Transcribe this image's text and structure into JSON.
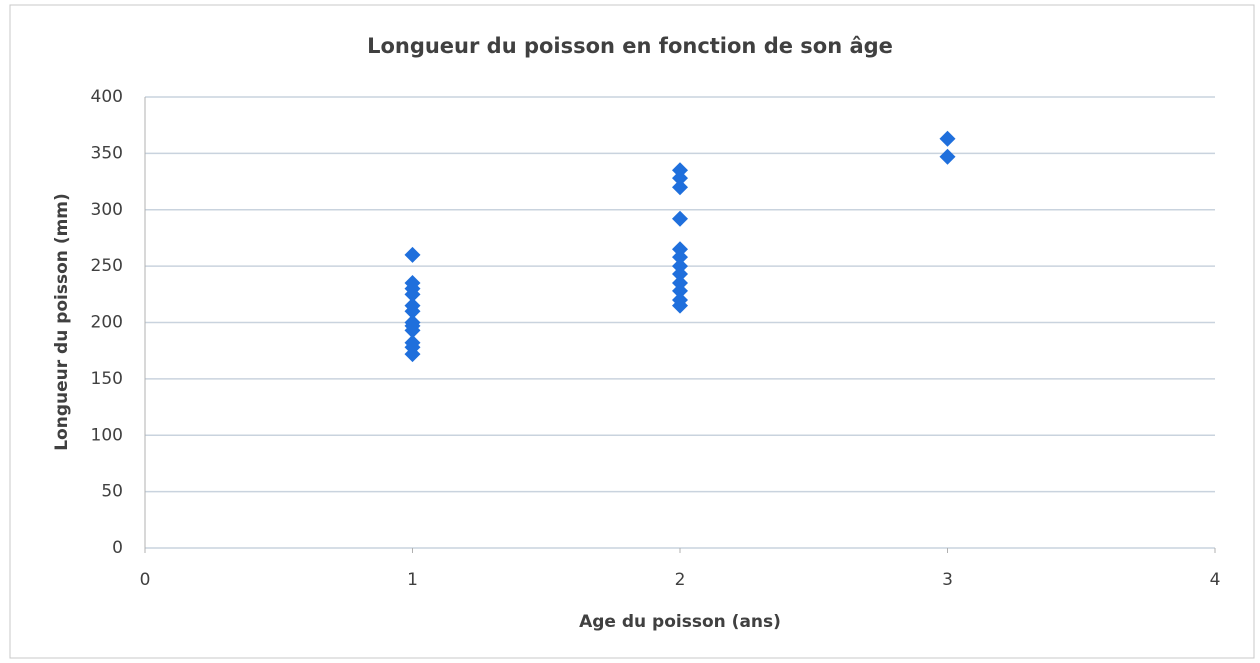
{
  "chart_data": {
    "type": "scatter",
    "title": "Longueur du poisson en fonction de son âge",
    "x_label": "Age du poisson (ans)",
    "y_label": "Longueur du poisson (mm)",
    "color": "#1f6fdc",
    "grid": true,
    "xlim": [
      0,
      4
    ],
    "xticks": [
      0,
      1,
      2,
      3,
      4
    ],
    "ylim": [
      0,
      400
    ],
    "yticks": [
      0,
      50,
      100,
      150,
      200,
      250,
      300,
      350,
      400
    ],
    "series": [
      {
        "name": "Longueur",
        "x": [
          1,
          1,
          1,
          1,
          1,
          1,
          1,
          1,
          1,
          1,
          1,
          1,
          2,
          2,
          2,
          2,
          2,
          2,
          2,
          2,
          2,
          2,
          2,
          2,
          3,
          3
        ],
        "values": [
          260,
          235,
          230,
          225,
          215,
          210,
          200,
          197,
          193,
          182,
          178,
          172,
          335,
          328,
          320,
          292,
          265,
          258,
          250,
          243,
          235,
          228,
          220,
          215,
          363,
          347
        ]
      }
    ]
  }
}
